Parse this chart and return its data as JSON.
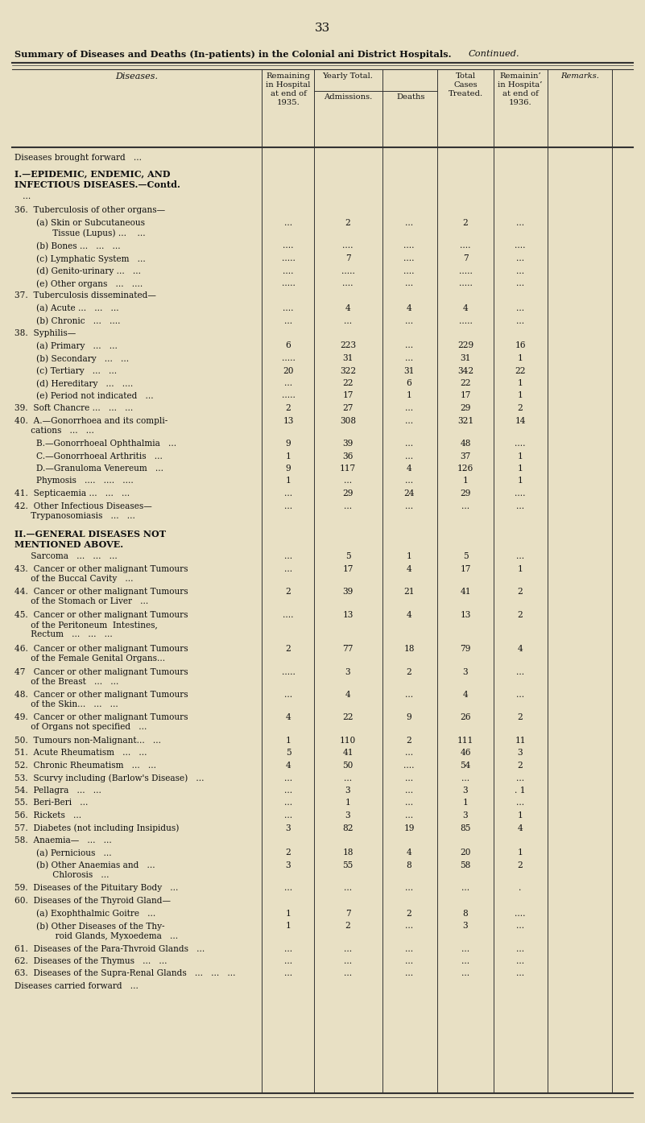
{
  "page_number": "33",
  "bg_color": "#e8e0c4",
  "title_bold": "Summary of Diseases and Deaths (In-patients) in the Colonial ani District Hospitals.",
  "title_italic": "Continued.",
  "rows": [
    {
      "label": "Diseases brought forward   ...",
      "bold": false,
      "rem35": "",
      "adm": "",
      "deaths": "",
      "total": "",
      "rem36": "",
      "extra_before": 0
    },
    {
      "label": "I.—EPIDEMIC, ENDEMIC, AND\nINFECTIOUS DISEASES.—Contd.",
      "bold": true,
      "rem35": "",
      "adm": "",
      "deaths": "",
      "total": "",
      "rem36": "",
      "extra_before": 4
    },
    {
      "label": "   ...",
      "bold": false,
      "rem35": "",
      "adm": "",
      "deaths": "",
      "total": "",
      "rem36": "",
      "extra_before": 0
    },
    {
      "label": "36.  Tuberculosis of other organs—",
      "bold": false,
      "rem35": "",
      "adm": "",
      "deaths": "",
      "total": "",
      "rem36": "",
      "extra_before": 2
    },
    {
      "label": "        (a) Skin or Subcutaneous\n              Tissue (Lupus) ...    ...",
      "bold": false,
      "rem35": "...",
      "adm": "2",
      "deaths": "...",
      "total": "2",
      "rem36": "...",
      "extra_before": 0
    },
    {
      "label": "        (b) Bones ...   ...   ...",
      "bold": false,
      "rem35": "....",
      "adm": "....",
      "deaths": "....",
      "total": "....",
      "rem36": "....",
      "extra_before": 0
    },
    {
      "label": "        (c) Lymphatic System   ...",
      "bold": false,
      "rem35": ".....",
      "adm": "7",
      "deaths": "....",
      "total": "7",
      "rem36": "...",
      "extra_before": 0
    },
    {
      "label": "        (d) Genito-urinary ...   ...",
      "bold": false,
      "rem35": "....",
      "adm": ".....",
      "deaths": "....",
      "total": ".....",
      "rem36": "...",
      "extra_before": 0
    },
    {
      "label": "        (e) Other organs   ...   ....",
      "bold": false,
      "rem35": ".....",
      "adm": "....",
      "deaths": "...",
      "total": ".....",
      "rem36": "...",
      "extra_before": 0
    },
    {
      "label": "37.  Tuberculosis disseminated—",
      "bold": false,
      "rem35": "",
      "adm": "",
      "deaths": "",
      "total": "",
      "rem36": "",
      "extra_before": 0
    },
    {
      "label": "        (a) Acute ...   ...   ...",
      "bold": false,
      "rem35": "....",
      "adm": "4",
      "deaths": "4",
      "total": "4",
      "rem36": "...",
      "extra_before": 0
    },
    {
      "label": "        (b) Chronic   ...   ....",
      "bold": false,
      "rem35": "...",
      "adm": "...",
      "deaths": "...",
      "total": ".....",
      "rem36": "...",
      "extra_before": 0
    },
    {
      "label": "38.  Syphilis—",
      "bold": false,
      "rem35": "",
      "adm": "",
      "deaths": "",
      "total": "",
      "rem36": "",
      "extra_before": 0
    },
    {
      "label": "        (a) Primary   ...   ...",
      "bold": false,
      "rem35": "6",
      "adm": "223",
      "deaths": "...",
      "total": "229",
      "rem36": "16",
      "extra_before": 0
    },
    {
      "label": "        (b) Secondary   ...   ...",
      "bold": false,
      "rem35": ".....",
      "adm": "31",
      "deaths": "...",
      "total": "31",
      "rem36": "1",
      "extra_before": 0
    },
    {
      "label": "        (c) Tertiary   ...   ...",
      "bold": false,
      "rem35": "20",
      "adm": "322",
      "deaths": "31",
      "total": "342",
      "rem36": "22",
      "extra_before": 0
    },
    {
      "label": "        (d) Hereditary   ...   ....",
      "bold": false,
      "rem35": "...",
      "adm": "22",
      "deaths": "6",
      "total": "22",
      "rem36": "1",
      "extra_before": 0
    },
    {
      "label": "        (e) Period not indicated   ...",
      "bold": false,
      "rem35": ".....",
      "adm": "17",
      "deaths": "1",
      "total": "17",
      "rem36": "1",
      "extra_before": 0
    },
    {
      "label": "39.  Soft Chancre ...   ...   ...",
      "bold": false,
      "rem35": "2",
      "adm": "27",
      "deaths": "...",
      "total": "29",
      "rem36": "2",
      "extra_before": 0
    },
    {
      "label": "40.  A.—Gonorrhoea and its compli-\n      cations   ...   ...",
      "bold": false,
      "rem35": "13",
      "adm": "308",
      "deaths": "...",
      "total": "321",
      "rem36": "14",
      "extra_before": 0
    },
    {
      "label": "        B.—Gonorrhoeal Ophthalmia   ...",
      "bold": false,
      "rem35": "9",
      "adm": "39",
      "deaths": "...",
      "total": "48",
      "rem36": "....",
      "extra_before": 0
    },
    {
      "label": "        C.—Gonorrhoeal Arthritis   ...",
      "bold": false,
      "rem35": "1",
      "adm": "36",
      "deaths": "...",
      "total": "37",
      "rem36": "1",
      "extra_before": 0
    },
    {
      "label": "        D.—Granuloma Venereum   ...",
      "bold": false,
      "rem35": "9",
      "adm": "117",
      "deaths": "4",
      "total": "126",
      "rem36": "1",
      "extra_before": 0
    },
    {
      "label": "        Phymosis   ....   ....   ....",
      "bold": false,
      "rem35": "1",
      "adm": "...",
      "deaths": "...",
      "total": "1",
      "rem36": "1",
      "extra_before": 0
    },
    {
      "label": "41.  Septicaemia ...   ...   ...",
      "bold": false,
      "rem35": "...",
      "adm": "29",
      "deaths": "24",
      "total": "29",
      "rem36": "....",
      "extra_before": 0
    },
    {
      "label": "42.  Other Infectious Diseases—\n      Trypanosomiasis   ...   ...",
      "bold": false,
      "rem35": "...",
      "adm": "...",
      "deaths": "...",
      "total": "...",
      "rem36": "...",
      "extra_before": 0
    },
    {
      "label": "II.—GENERAL DISEASES NOT\nMENTIONED ABOVE.",
      "bold": true,
      "rem35": "",
      "adm": "",
      "deaths": "",
      "total": "",
      "rem36": "",
      "extra_before": 6
    },
    {
      "label": "      Sarcoma   ...   ...   ...",
      "bold": false,
      "rem35": "...",
      "adm": "5",
      "deaths": "1",
      "total": "5",
      "rem36": "...",
      "extra_before": 0
    },
    {
      "label": "43.  Cancer or other malignant Tumours\n      of the Buccal Cavity   ...",
      "bold": false,
      "rem35": "...",
      "adm": "17",
      "deaths": "4",
      "total": "17",
      "rem36": "1",
      "extra_before": 0
    },
    {
      "label": "44.  Cancer or other malignant Tumours\n      of the Stomach or Liver   ...",
      "bold": false,
      "rem35": "2",
      "adm": "39",
      "deaths": "21",
      "total": "41",
      "rem36": "2",
      "extra_before": 0
    },
    {
      "label": "45.  Cancer or other malignant Tumours\n      of the Peritoneum  Intestines,\n      Rectum   ...   ...   ...",
      "bold": false,
      "rem35": "....",
      "adm": "13",
      "deaths": "4",
      "total": "13",
      "rem36": "2",
      "extra_before": 0
    },
    {
      "label": "46.  Cancer or other malignant Tumours\n      of the Female Genital Organs...",
      "bold": false,
      "rem35": "2",
      "adm": "77",
      "deaths": "18",
      "total": "79",
      "rem36": "4",
      "extra_before": 0
    },
    {
      "label": "47   Cancer or other malignant Tumours\n      of the Breast   ...   ...",
      "bold": false,
      "rem35": ".....",
      "adm": "3",
      "deaths": "2",
      "total": "3",
      "rem36": "...",
      "extra_before": 0
    },
    {
      "label": "48.  Cancer or other malignant Tumours\n      of the Skin...   ...   ...",
      "bold": false,
      "rem35": "...",
      "adm": "4",
      "deaths": "...",
      "total": "4",
      "rem36": "...",
      "extra_before": 0
    },
    {
      "label": "49.  Cancer or other malignant Tumours\n      of Organs not specified   ...",
      "bold": false,
      "rem35": "4",
      "adm": "22",
      "deaths": "9",
      "total": "26",
      "rem36": "2",
      "extra_before": 0
    },
    {
      "label": "50.  Tumours non-Malignant...   ...",
      "bold": false,
      "rem35": "1",
      "adm": "110",
      "deaths": "2",
      "total": "111",
      "rem36": "11",
      "extra_before": 0
    },
    {
      "label": "51.  Acute Rheumatism   ...   ...",
      "bold": false,
      "rem35": "5",
      "adm": "41",
      "deaths": "...",
      "total": "46",
      "rem36": "3",
      "extra_before": 0
    },
    {
      "label": "52.  Chronic Rheumatism   ...   ...",
      "bold": false,
      "rem35": "4",
      "adm": "50",
      "deaths": "....",
      "total": "54",
      "rem36": "2",
      "extra_before": 0
    },
    {
      "label": "53.  Scurvy including (Barlow's Disease)   ...",
      "bold": false,
      "rem35": "...",
      "adm": "...",
      "deaths": "...",
      "total": "...",
      "rem36": "...",
      "extra_before": 0
    },
    {
      "label": "54.  Pellagra   ...   ...",
      "bold": false,
      "rem35": "...",
      "adm": "3",
      "deaths": "...",
      "total": "3",
      "rem36": ". 1",
      "extra_before": 0
    },
    {
      "label": "55.  Beri-Beri   ...",
      "bold": false,
      "rem35": "...",
      "adm": "1",
      "deaths": "...",
      "total": "1",
      "rem36": "...",
      "extra_before": 0
    },
    {
      "label": "56.  Rickets   ...",
      "bold": false,
      "rem35": "...",
      "adm": "3",
      "deaths": "...",
      "total": "3",
      "rem36": "1",
      "extra_before": 0
    },
    {
      "label": "57.  Diabetes (not including Insipidus)",
      "bold": false,
      "rem35": "3",
      "adm": "82",
      "deaths": "19",
      "total": "85",
      "rem36": "4",
      "extra_before": 0
    },
    {
      "label": "58.  Anaemia—   ...   ...",
      "bold": false,
      "rem35": "",
      "adm": "",
      "deaths": "",
      "total": "",
      "rem36": "",
      "extra_before": 0
    },
    {
      "label": "        (a) Pernicious   ...",
      "bold": false,
      "rem35": "2",
      "adm": "18",
      "deaths": "4",
      "total": "20",
      "rem36": "1",
      "extra_before": 0
    },
    {
      "label": "        (b) Other Anaemias and   ...\n              Chlorosis   ...",
      "bold": false,
      "rem35": "3",
      "adm": "55",
      "deaths": "8",
      "total": "58",
      "rem36": "2",
      "extra_before": 0
    },
    {
      "label": "59.  Diseases of the Pituitary Body   ...",
      "bold": false,
      "rem35": "...",
      "adm": "...",
      "deaths": "...",
      "total": "...",
      "rem36": ".",
      "extra_before": 0
    },
    {
      "label": "60.  Diseases of the Thyroid Gland—",
      "bold": false,
      "rem35": "",
      "adm": "",
      "deaths": "",
      "total": "",
      "rem36": "",
      "extra_before": 0
    },
    {
      "label": "        (a) Exophthalmic Goitre   ...",
      "bold": false,
      "rem35": "1",
      "adm": "7",
      "deaths": "2",
      "total": "8",
      "rem36": "....",
      "extra_before": 0
    },
    {
      "label": "        (b) Other Diseases of the Thy-\n               roid Glands, Myxoedema   ...",
      "bold": false,
      "rem35": "1",
      "adm": "2",
      "deaths": "...",
      "total": "3",
      "rem36": "...",
      "extra_before": 0
    },
    {
      "label": "61.  Diseases of the Para-Thvroid Glands   ...",
      "bold": false,
      "rem35": "...",
      "adm": "...",
      "deaths": "...",
      "total": "...",
      "rem36": "...",
      "extra_before": 0
    },
    {
      "label": "62.  Diseases of the Thymus   ...   ...",
      "bold": false,
      "rem35": "...",
      "adm": "...",
      "deaths": "...",
      "total": "...",
      "rem36": "...",
      "extra_before": 0
    },
    {
      "label": "63.  Diseases of the Supra-Renal Glands   ...   ...   ...",
      "bold": false,
      "rem35": "...",
      "adm": "...",
      "deaths": "...",
      "total": "...",
      "rem36": "...",
      "extra_before": 0
    },
    {
      "label": "Diseases carried forward   ...",
      "bold": false,
      "rem35": "",
      "adm": "",
      "deaths": "",
      "total": "",
      "rem36": "",
      "extra_before": 0
    }
  ]
}
